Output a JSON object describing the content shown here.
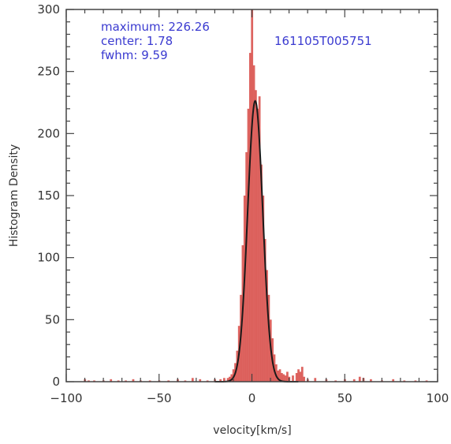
{
  "chart_data": {
    "type": "bar",
    "xlabel": "velocity[km/s]",
    "ylabel": "Histogram Density",
    "xlim": [
      -100,
      100
    ],
    "ylim": [
      0,
      300
    ],
    "xticks": [
      -100,
      -50,
      0,
      50,
      100
    ],
    "yticks": [
      0,
      50,
      100,
      150,
      200,
      250,
      300
    ],
    "xtick_labels": [
      "−100",
      "−50",
      "0",
      "50",
      "100"
    ],
    "ytick_labels": [
      "0",
      "50",
      "100",
      "150",
      "200",
      "250",
      "300"
    ],
    "annotations": {
      "maximum": "maximum: 226.26",
      "center": "center: 1.78",
      "fwhm": "fwhm: 9.59",
      "event_id": "161105T005751"
    },
    "fit": {
      "type": "gaussian",
      "maximum": 226.26,
      "center": 1.78,
      "fwhm": 9.59
    },
    "histogram": {
      "bin_width": 1,
      "color": "#d9534f",
      "x": [
        -90,
        -88,
        -85,
        -80,
        -76,
        -72,
        -68,
        -64,
        -60,
        -55,
        -50,
        -45,
        -40,
        -36,
        -32,
        -28,
        -24,
        -20,
        -17,
        -15,
        -13,
        -12,
        -11,
        -10,
        -9,
        -8,
        -7,
        -6,
        -5,
        -4,
        -3,
        -2,
        -1,
        0,
        1,
        2,
        3,
        4,
        5,
        6,
        7,
        8,
        9,
        10,
        11,
        12,
        13,
        14,
        15,
        16,
        17,
        18,
        19,
        20,
        22,
        24,
        25,
        26,
        27,
        28,
        30,
        34,
        40,
        45,
        50,
        55,
        58,
        60,
        64,
        70,
        76,
        82,
        88,
        94
      ],
      "values": [
        2,
        1,
        1,
        1,
        2,
        1,
        1,
        2,
        1,
        1,
        1,
        1,
        2,
        1,
        3,
        2,
        1,
        2,
        2,
        3,
        3,
        4,
        6,
        10,
        15,
        25,
        45,
        70,
        110,
        150,
        185,
        220,
        265,
        300,
        255,
        235,
        220,
        230,
        175,
        150,
        115,
        90,
        70,
        50,
        35,
        22,
        14,
        9,
        10,
        7,
        6,
        5,
        8,
        4,
        5,
        7,
        10,
        8,
        12,
        4,
        2,
        3,
        2,
        1,
        2,
        2,
        4,
        3,
        2,
        1,
        2,
        1,
        1,
        1
      ]
    },
    "grid": false,
    "legend": "none"
  }
}
